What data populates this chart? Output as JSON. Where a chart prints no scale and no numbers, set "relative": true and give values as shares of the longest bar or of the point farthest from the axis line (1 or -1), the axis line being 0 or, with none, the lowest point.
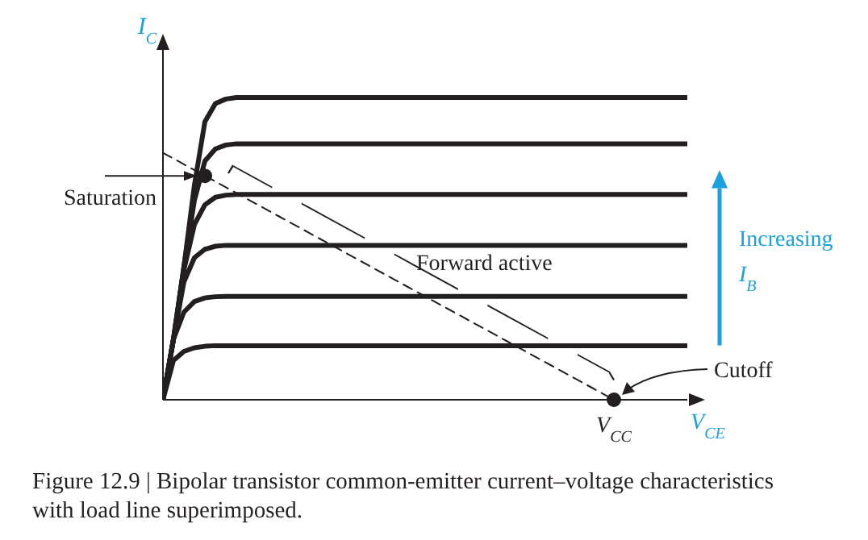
{
  "chart_data": {
    "type": "line",
    "relative": true,
    "xlabel": "V$_{CE}$",
    "ylabel": "I$_{C}$",
    "marker": "none",
    "line_style": "solid",
    "categories": [
      null,
      null,
      null,
      null,
      null,
      null,
      null,
      null,
      null,
      null,
      null,
      null,
      null,
      null,
      null,
      null,
      null,
      null,
      null,
      null,
      null,
      null,
      null,
      null,
      null,
      null,
      null,
      null,
      null,
      null,
      null,
      null,
      null,
      null,
      null,
      null,
      null,
      null,
      null,
      null,
      null,
      null,
      null,
      null,
      null,
      null,
      null,
      null,
      null,
      null,
      null
    ],
    "series": [
      {
        "color": "#231f20",
        "values": [
          0,
          0.2,
          0.44,
          0.71,
          0.92,
          0.98,
          0.995,
          1,
          1,
          1,
          1,
          1,
          1,
          1,
          1,
          1,
          1,
          1,
          1,
          1,
          1,
          1,
          1,
          1,
          1,
          1,
          1,
          1,
          1,
          1,
          1,
          1,
          1,
          1,
          1,
          1,
          1,
          1,
          1,
          1,
          1,
          1,
          1,
          1,
          1,
          1,
          1,
          1,
          1,
          1,
          1
        ]
      },
      {
        "color": "#231f20",
        "values": [
          0,
          0.2,
          0.44,
          0.66,
          0.79,
          0.83,
          0.843,
          0.847,
          0.847,
          0.847,
          0.847,
          0.847,
          0.847,
          0.847,
          0.847,
          0.847,
          0.847,
          0.847,
          0.847,
          0.847,
          0.847,
          0.847,
          0.847,
          0.847,
          0.847,
          0.847,
          0.847,
          0.847,
          0.847,
          0.847,
          0.847,
          0.847,
          0.847,
          0.847,
          0.847,
          0.847,
          0.847,
          0.847,
          0.847,
          0.847,
          0.847,
          0.847,
          0.847,
          0.847,
          0.847,
          0.847,
          0.847,
          0.847,
          0.847,
          0.847,
          0.847
        ]
      },
      {
        "color": "#231f20",
        "values": [
          0,
          0.2,
          0.43,
          0.58,
          0.645,
          0.67,
          0.677,
          0.679,
          0.679,
          0.679,
          0.679,
          0.679,
          0.679,
          0.679,
          0.679,
          0.679,
          0.679,
          0.679,
          0.679,
          0.679,
          0.679,
          0.679,
          0.679,
          0.679,
          0.679,
          0.679,
          0.679,
          0.679,
          0.679,
          0.679,
          0.679,
          0.679,
          0.679,
          0.679,
          0.679,
          0.679,
          0.679,
          0.679,
          0.679,
          0.679,
          0.679,
          0.679,
          0.679,
          0.679,
          0.679,
          0.679,
          0.679,
          0.679,
          0.679,
          0.679,
          0.679
        ]
      },
      {
        "color": "#231f20",
        "values": [
          0,
          0.2,
          0.39,
          0.47,
          0.498,
          0.508,
          0.511,
          0.511,
          0.511,
          0.511,
          0.511,
          0.511,
          0.511,
          0.511,
          0.511,
          0.511,
          0.511,
          0.511,
          0.511,
          0.511,
          0.511,
          0.511,
          0.511,
          0.511,
          0.511,
          0.511,
          0.511,
          0.511,
          0.511,
          0.511,
          0.511,
          0.511,
          0.511,
          0.511,
          0.511,
          0.511,
          0.511,
          0.511,
          0.511,
          0.511,
          0.511,
          0.511,
          0.511,
          0.511,
          0.511,
          0.511,
          0.511,
          0.511,
          0.511,
          0.511,
          0.511
        ]
      },
      {
        "color": "#231f20",
        "values": [
          0,
          0.2,
          0.29,
          0.325,
          0.337,
          0.341,
          0.342,
          0.342,
          0.342,
          0.342,
          0.342,
          0.342,
          0.342,
          0.342,
          0.342,
          0.342,
          0.342,
          0.342,
          0.342,
          0.342,
          0.342,
          0.342,
          0.342,
          0.342,
          0.342,
          0.342,
          0.342,
          0.342,
          0.342,
          0.342,
          0.342,
          0.342,
          0.342,
          0.342,
          0.342,
          0.342,
          0.342,
          0.342,
          0.342,
          0.342,
          0.342,
          0.342,
          0.342,
          0.342,
          0.342,
          0.342,
          0.342,
          0.342,
          0.342,
          0.342,
          0.342
        ]
      },
      {
        "color": "#231f20",
        "values": [
          0,
          0.13,
          0.16,
          0.172,
          0.177,
          0.179,
          0.179,
          0.179,
          0.179,
          0.179,
          0.179,
          0.179,
          0.179,
          0.179,
          0.179,
          0.179,
          0.179,
          0.179,
          0.179,
          0.179,
          0.179,
          0.179,
          0.179,
          0.179,
          0.179,
          0.179,
          0.179,
          0.179,
          0.179,
          0.179,
          0.179,
          0.179,
          0.179,
          0.179,
          0.179,
          0.179,
          0.179,
          0.179,
          0.179,
          0.179,
          0.179,
          0.179,
          0.179,
          0.179,
          0.179,
          0.179,
          0.179,
          0.179,
          0.179,
          0.179,
          0.179
        ]
      },
      {
        "line_style": "dashed",
        "color": "#231f20",
        "values": [
          0.817,
          0.798,
          0.779,
          0.76,
          0.741,
          0.722,
          0.703,
          0.684,
          0.665,
          0.646,
          0.627,
          0.608,
          0.589,
          0.57,
          0.551,
          0.532,
          0.513,
          0.494,
          0.475,
          0.456,
          0.437,
          0.418,
          0.399,
          0.38,
          0.361,
          0.342,
          0.323,
          0.304,
          0.285,
          0.266,
          0.247,
          0.228,
          0.209,
          0.19,
          0.171,
          0.152,
          0.133,
          0.114,
          0.095,
          0.076,
          0.057,
          0.038,
          0.019,
          0,
          null,
          null,
          null,
          null,
          null,
          null,
          null
        ]
      }
    ],
    "annotations": [
      "Saturation",
      "Forward active",
      "Cutoff",
      "V$_{CC}$",
      "Increasing I$_{B}$",
      "Figure 12.9 | Bipolar transistor common-emitter current–voltage characteristics with load line superimposed."
    ]
  }
}
